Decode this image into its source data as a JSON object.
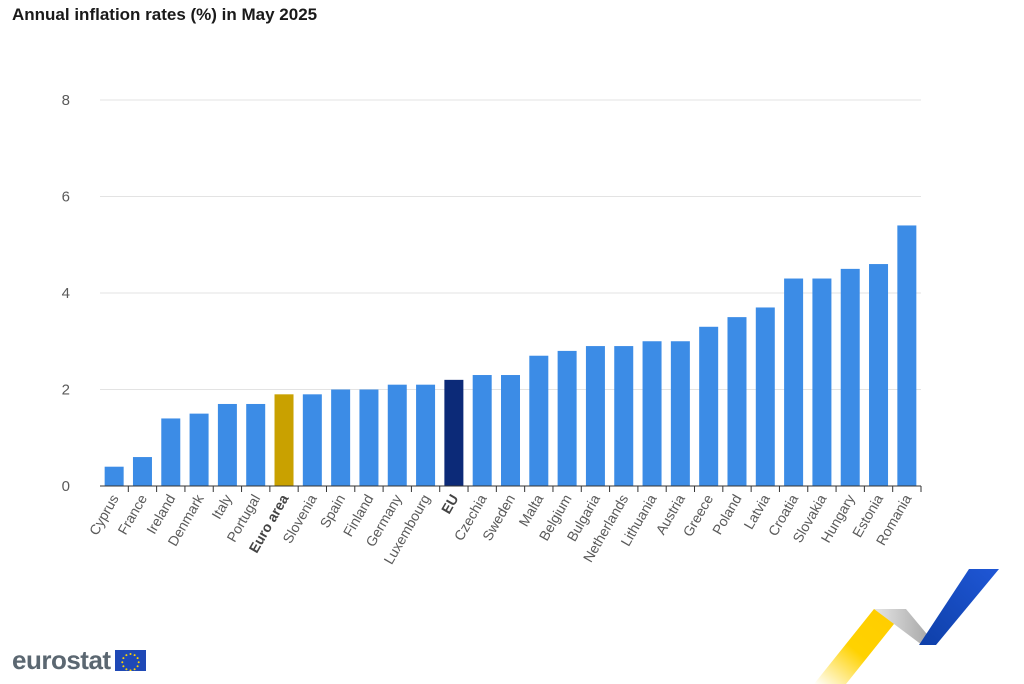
{
  "chart_data": {
    "type": "bar",
    "title": "Annual inflation rates (%) in May 2025",
    "xlabel": "",
    "ylabel": "",
    "ylim": [
      0,
      8
    ],
    "yticks": [
      0,
      2,
      4,
      6,
      8
    ],
    "grid": true,
    "categories": [
      "Cyprus",
      "France",
      "Ireland",
      "Denmark",
      "Italy",
      "Portugal",
      "Euro area",
      "Slovenia",
      "Spain",
      "Finland",
      "Germany",
      "Luxembourg",
      "EU",
      "Czechia",
      "Sweden",
      "Malta",
      "Belgium",
      "Bulgaria",
      "Netherlands",
      "Lithuania",
      "Austria",
      "Greece",
      "Poland",
      "Latvia",
      "Croatia",
      "Slovakia",
      "Hungary",
      "Estonia",
      "Romania"
    ],
    "values": [
      0.4,
      0.6,
      1.4,
      1.5,
      1.7,
      1.7,
      1.9,
      1.9,
      2.0,
      2.0,
      2.1,
      2.1,
      2.2,
      2.3,
      2.3,
      2.7,
      2.8,
      2.9,
      2.9,
      3.0,
      3.0,
      3.3,
      3.5,
      3.7,
      4.3,
      4.3,
      4.5,
      4.6,
      5.4
    ],
    "highlight": {
      "Euro area": "#c9a100",
      "EU": "#0c2a78"
    },
    "default_color": "#3c8ce6"
  },
  "brand": {
    "name": "eurostat"
  }
}
